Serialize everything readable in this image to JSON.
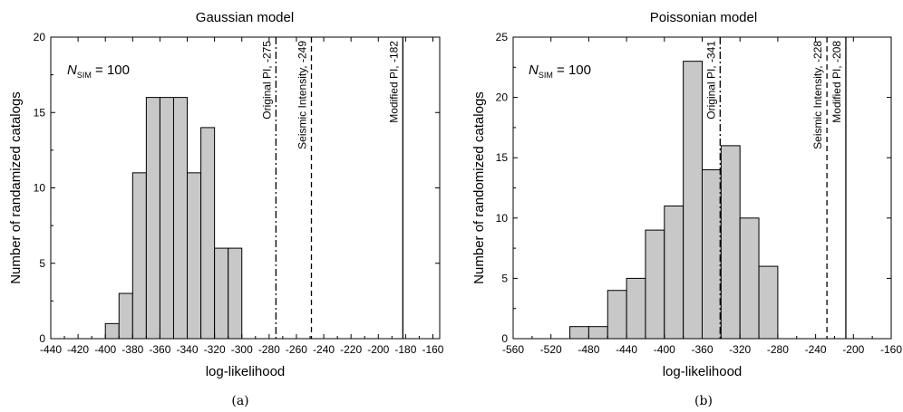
{
  "chart_data": [
    {
      "type": "bar",
      "title": "Gaussian model",
      "xlabel": "log-likelihood",
      "ylabel": "Number of randamized catalogs",
      "xlim": [
        -440,
        -155
      ],
      "ylim": [
        0,
        20
      ],
      "xticks": [
        -440,
        -420,
        -400,
        -380,
        -360,
        -340,
        -320,
        -300,
        -280,
        -260,
        -240,
        -220,
        -200,
        -180,
        -160
      ],
      "yticks": [
        0,
        5,
        10,
        15,
        20
      ],
      "bin_width": 10,
      "bins": [
        {
          "start": -400,
          "end": -390,
          "count": 1
        },
        {
          "start": -390,
          "end": -380,
          "count": 3
        },
        {
          "start": -380,
          "end": -370,
          "count": 11
        },
        {
          "start": -370,
          "end": -360,
          "count": 16
        },
        {
          "start": -360,
          "end": -350,
          "count": 16
        },
        {
          "start": -350,
          "end": -340,
          "count": 16
        },
        {
          "start": -340,
          "end": -330,
          "count": 11
        },
        {
          "start": -330,
          "end": -320,
          "count": 14
        },
        {
          "start": -320,
          "end": -310,
          "count": 6
        },
        {
          "start": -310,
          "end": -300,
          "count": 6
        }
      ],
      "reference_lines": [
        {
          "label": "Original PI, -275",
          "value": -275,
          "style": "dash-dot"
        },
        {
          "label": "Seismic Intensity, -249",
          "value": -249,
          "style": "dashed"
        },
        {
          "label": "Modified PI, -182",
          "value": -182,
          "style": "solid"
        }
      ],
      "annotation": {
        "n": "N",
        "sub": "SIM",
        "rest": " = 100"
      },
      "caption": "(a)"
    },
    {
      "type": "bar",
      "title": "Poissonian model",
      "xlabel": "log-likelihood",
      "ylabel": "Number of randomized catalogs",
      "xlim": [
        -560,
        -160
      ],
      "ylim": [
        0,
        25
      ],
      "xticks": [
        -560,
        -520,
        -480,
        -440,
        -400,
        -360,
        -320,
        -280,
        -240,
        -200,
        -160
      ],
      "yticks": [
        0,
        5,
        10,
        15,
        20,
        25
      ],
      "bin_width": 20,
      "bins": [
        {
          "start": -500,
          "end": -480,
          "count": 1
        },
        {
          "start": -480,
          "end": -460,
          "count": 1
        },
        {
          "start": -460,
          "end": -440,
          "count": 4
        },
        {
          "start": -440,
          "end": -420,
          "count": 5
        },
        {
          "start": -420,
          "end": -400,
          "count": 9
        },
        {
          "start": -400,
          "end": -380,
          "count": 11
        },
        {
          "start": -380,
          "end": -360,
          "count": 23
        },
        {
          "start": -360,
          "end": -340,
          "count": 14
        },
        {
          "start": -340,
          "end": -320,
          "count": 16
        },
        {
          "start": -320,
          "end": -300,
          "count": 10
        },
        {
          "start": -300,
          "end": -280,
          "count": 6
        }
      ],
      "reference_lines": [
        {
          "label": "Original PI, -341",
          "value": -341,
          "style": "dash-dot"
        },
        {
          "label": "Seismic Intensity, -228",
          "value": -228,
          "style": "dashed"
        },
        {
          "label": "Modified PI, -208",
          "value": -208,
          "style": "solid"
        }
      ],
      "annotation": {
        "n": "N",
        "sub": "SIM",
        "rest": " = 100"
      },
      "caption": "(b)"
    }
  ]
}
